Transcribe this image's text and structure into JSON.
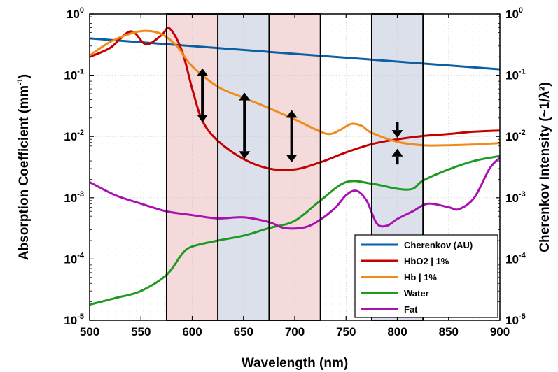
{
  "chart_data": {
    "type": "line",
    "xlabel": "Wavelength (nm)",
    "ylabel_left": "Absorption Coefficient (mm",
    "ylabel_left_sup": "-1",
    "ylabel_left_end": ")",
    "ylabel_right": "Cherenkov Intensity (~1/λ²)",
    "xlim": [
      500,
      900
    ],
    "ylim": [
      1e-05,
      1
    ],
    "yscale": "log",
    "grid": true,
    "legend_position": "bottom-right",
    "x_ticks": [
      "500",
      "550",
      "600",
      "650",
      "700",
      "750",
      "800",
      "850",
      "900"
    ],
    "y_ticks": [
      {
        "base": "10",
        "exp": "-5"
      },
      {
        "base": "10",
        "exp": "-4"
      },
      {
        "base": "10",
        "exp": "-3"
      },
      {
        "base": "10",
        "exp": "-2"
      },
      {
        "base": "10",
        "exp": "-1"
      },
      {
        "base": "10",
        "exp": "0"
      }
    ],
    "highlight_bands": [
      {
        "x0": 575,
        "x1": 625,
        "color": "#f2d4d4"
      },
      {
        "x0": 625,
        "x1": 675,
        "color": "#d6dbe6"
      },
      {
        "x0": 675,
        "x1": 725,
        "color": "#f2d4d4"
      },
      {
        "x0": 775,
        "x1": 825,
        "color": "#d6dbe6"
      }
    ],
    "arrows": [
      {
        "x": 610,
        "y0": 0.13,
        "y1": 0.017
      },
      {
        "x": 651,
        "y0": 0.052,
        "y1": 0.0043
      },
      {
        "x": 697,
        "y0": 0.027,
        "y1": 0.0038
      },
      {
        "x": 800,
        "y0": 0.017,
        "y1": 0.0095,
        "dir": "down"
      },
      {
        "x": 800,
        "y0": 0.0035,
        "y1": 0.0063,
        "dir": "up"
      }
    ],
    "series": [
      {
        "name": "Cherenkov (AU)",
        "color": "#0b5fa5",
        "x": [
          500,
          900
        ],
        "y": [
          0.4,
          0.125
        ]
      },
      {
        "name": "HbO2 | 1%",
        "color": "#c40000",
        "x": [
          500,
          520,
          540,
          555,
          570,
          578,
          590,
          600,
          610,
          625,
          650,
          675,
          700,
          725,
          750,
          775,
          800,
          825,
          850,
          875,
          900
        ],
        "y": [
          0.2,
          0.28,
          0.52,
          0.32,
          0.45,
          0.58,
          0.25,
          0.06,
          0.018,
          0.0085,
          0.0043,
          0.003,
          0.0029,
          0.0038,
          0.0055,
          0.0075,
          0.009,
          0.0102,
          0.011,
          0.012,
          0.0125
        ]
      },
      {
        "name": "Hb | 1%",
        "color": "#f08a18",
        "x": [
          500,
          520,
          540,
          555,
          570,
          585,
          600,
          625,
          650,
          675,
          700,
          725,
          735,
          745,
          755,
          765,
          775,
          800,
          825,
          850,
          875,
          900
        ],
        "y": [
          0.21,
          0.35,
          0.48,
          0.53,
          0.47,
          0.3,
          0.14,
          0.065,
          0.043,
          0.029,
          0.019,
          0.012,
          0.011,
          0.013,
          0.016,
          0.015,
          0.0115,
          0.0082,
          0.0072,
          0.0072,
          0.0074,
          0.0078
        ]
      },
      {
        "name": "Water",
        "color": "#1c9b22",
        "x": [
          500,
          525,
          550,
          575,
          590,
          600,
          625,
          650,
          675,
          700,
          725,
          750,
          775,
          800,
          815,
          825,
          850,
          875,
          900
        ],
        "y": [
          1.8e-05,
          2.3e-05,
          3e-05,
          5.5e-05,
          0.00012,
          0.00016,
          0.0002,
          0.00024,
          0.00032,
          0.00042,
          0.0009,
          0.0018,
          0.0017,
          0.0014,
          0.0014,
          0.0019,
          0.0029,
          0.004,
          0.0048
        ]
      },
      {
        "name": "Fat",
        "color": "#a912b0",
        "x": [
          500,
          525,
          550,
          575,
          600,
          625,
          650,
          675,
          690,
          710,
          725,
          740,
          750,
          760,
          770,
          780,
          790,
          800,
          815,
          830,
          850,
          860,
          875,
          890,
          900
        ],
        "y": [
          0.0018,
          0.0011,
          0.0008,
          0.0006,
          0.00052,
          0.00046,
          0.00048,
          0.0004,
          0.00032,
          0.00033,
          0.00044,
          0.0007,
          0.0011,
          0.0013,
          0.0009,
          0.00038,
          0.00035,
          0.00045,
          0.0006,
          0.0008,
          0.0007,
          0.00065,
          0.001,
          0.003,
          0.0045
        ]
      }
    ]
  }
}
